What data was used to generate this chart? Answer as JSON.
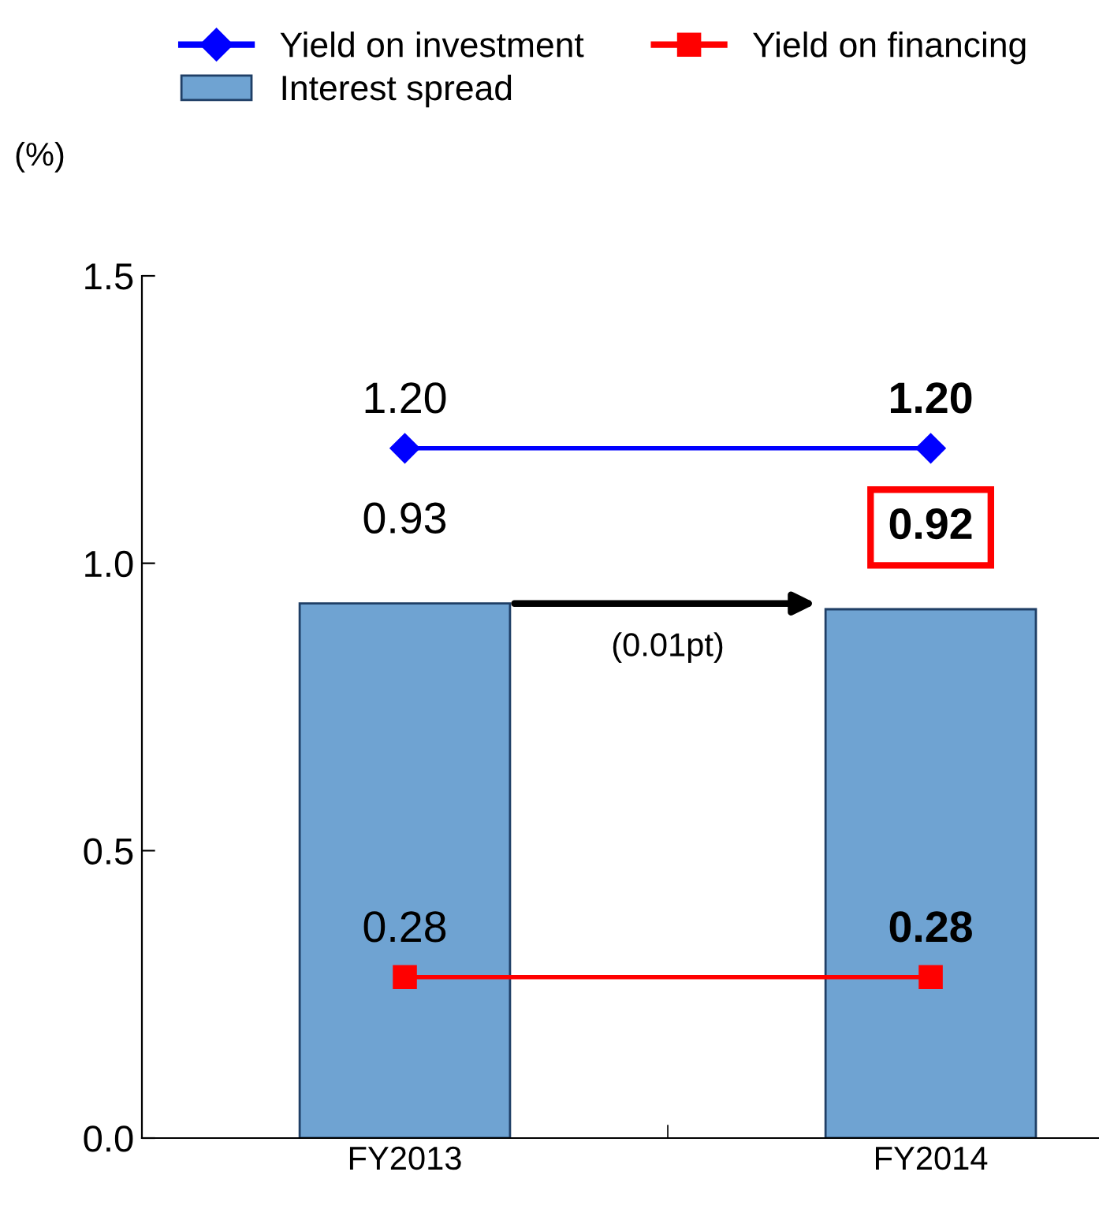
{
  "chart_data": {
    "type": "bar",
    "categories": [
      "FY2013",
      "FY2014"
    ],
    "ylabel": "(%)",
    "ylim": [
      0,
      1.5
    ],
    "yticks": [
      {
        "value": 0,
        "label": "0.0"
      },
      {
        "value": 0.5,
        "label": "0.5"
      },
      {
        "value": 1.0,
        "label": "1.0"
      },
      {
        "value": 1.5,
        "label": "1.5"
      }
    ],
    "grid": false,
    "legend": "top",
    "series": [
      {
        "name": "Interest spread",
        "color": "#6fa3d2",
        "values": [
          0.93,
          0.92
        ],
        "value_labels": [
          "0.93",
          "0.92"
        ]
      },
      {
        "name": "Yield on investment",
        "type": "line",
        "color": "#0000ff",
        "marker": "diamond",
        "values": [
          1.2,
          1.2
        ],
        "value_labels": [
          "1.20",
          "1.20"
        ]
      },
      {
        "name": "Yield on financing",
        "type": "line",
        "color": "#ff0000",
        "marker": "square",
        "values": [
          0.28,
          0.28
        ],
        "value_labels": [
          "0.28",
          "0.28"
        ]
      }
    ],
    "annotations": [
      "(0.01pt)"
    ]
  }
}
